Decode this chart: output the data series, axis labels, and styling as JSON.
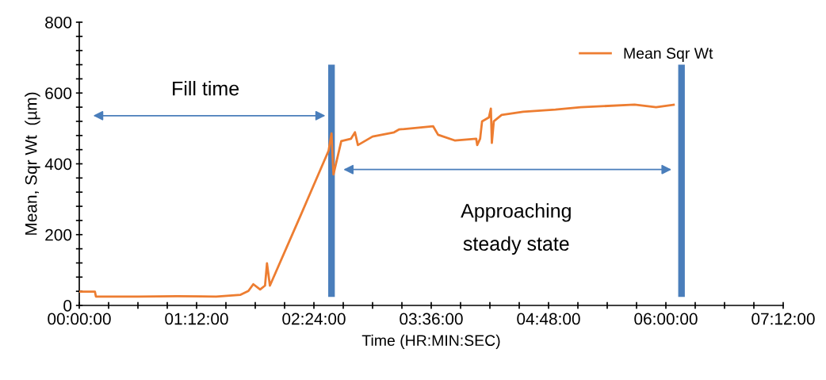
{
  "chart_data": {
    "type": "line",
    "xlabel": "Time (HR:MIN:SEC)",
    "ylabel": "Mean, Sqr Wt  (µm)",
    "x": [
      0,
      0.16,
      0.17,
      0.6,
      1.0,
      1.4,
      1.65,
      1.73,
      1.78,
      1.85,
      1.9,
      1.92,
      1.95,
      2.27,
      2.55,
      2.58,
      2.6,
      2.68,
      2.78,
      2.82,
      2.85,
      3.0,
      3.22,
      3.27,
      3.62,
      3.67,
      3.84,
      4.06,
      4.07,
      4.1,
      4.12,
      4.19,
      4.21,
      4.22,
      4.24,
      4.32,
      4.54,
      4.87,
      5.13,
      5.68,
      5.9,
      6.08
    ],
    "series": [
      {
        "name": "Mean Sqr Wt",
        "color": "#ed7d31",
        "values": [
          39,
          39,
          25,
          25,
          26,
          25,
          30,
          41,
          60,
          45,
          56,
          119,
          56,
          258,
          437,
          486,
          370,
          464,
          471,
          489,
          453,
          477,
          489,
          497,
          506,
          482,
          466,
          471,
          453,
          471,
          520,
          531,
          556,
          459,
          520,
          538,
          547,
          553,
          560,
          567,
          560,
          567
        ]
      }
    ],
    "xlim": [
      0,
      7.2
    ],
    "xticks": [
      {
        "value": 0,
        "label": "00:00:00"
      },
      {
        "value": 0.3,
        "label": null
      },
      {
        "value": 0.6,
        "label": null
      },
      {
        "value": 0.9,
        "label": null
      },
      {
        "value": 1.2,
        "label": "01:12:00"
      },
      {
        "value": 1.5,
        "label": null
      },
      {
        "value": 1.8,
        "label": null
      },
      {
        "value": 2.1,
        "label": null
      },
      {
        "value": 2.4,
        "label": "02:24:00"
      },
      {
        "value": 2.7,
        "label": null
      },
      {
        "value": 3.0,
        "label": null
      },
      {
        "value": 3.3,
        "label": null
      },
      {
        "value": 3.6,
        "label": "03:36:00"
      },
      {
        "value": 3.9,
        "label": null
      },
      {
        "value": 4.2,
        "label": null
      },
      {
        "value": 4.5,
        "label": null
      },
      {
        "value": 4.8,
        "label": "04:48:00"
      },
      {
        "value": 5.1,
        "label": null
      },
      {
        "value": 5.4,
        "label": null
      },
      {
        "value": 5.7,
        "label": null
      },
      {
        "value": 6.0,
        "label": "06:00:00"
      },
      {
        "value": 6.3,
        "label": null
      },
      {
        "value": 6.6,
        "label": null
      },
      {
        "value": 6.9,
        "label": null
      },
      {
        "value": 7.2,
        "label": "07:12:00"
      }
    ],
    "ylim": [
      0,
      800
    ],
    "yticks": [
      0,
      {
        "value": 40,
        "label": null
      },
      {
        "value": 80,
        "label": null
      },
      {
        "value": 120,
        "label": null
      },
      {
        "value": 160,
        "label": null
      },
      200,
      {
        "value": 240,
        "label": null
      },
      {
        "value": 280,
        "label": null
      },
      {
        "value": 320,
        "label": null
      },
      {
        "value": 360,
        "label": null
      },
      400,
      {
        "value": 440,
        "label": null
      },
      {
        "value": 480,
        "label": null
      },
      {
        "value": 520,
        "label": null
      },
      {
        "value": 560,
        "label": null
      },
      600,
      {
        "value": 640,
        "label": null
      },
      {
        "value": 680,
        "label": null
      },
      {
        "value": 720,
        "label": null
      },
      {
        "value": 760,
        "label": null
      },
      800
    ],
    "ref_lines": [
      {
        "axis": "x",
        "value": 2.58,
        "color": "#4a7ebb"
      },
      {
        "axis": "x",
        "value": 6.16,
        "color": "#4a7ebb"
      }
    ],
    "annotations": [
      "Fill time",
      "Approaching\nsteady state"
    ],
    "grid": false,
    "legend": "top right",
    "marker": "none",
    "line_style": "solid"
  }
}
